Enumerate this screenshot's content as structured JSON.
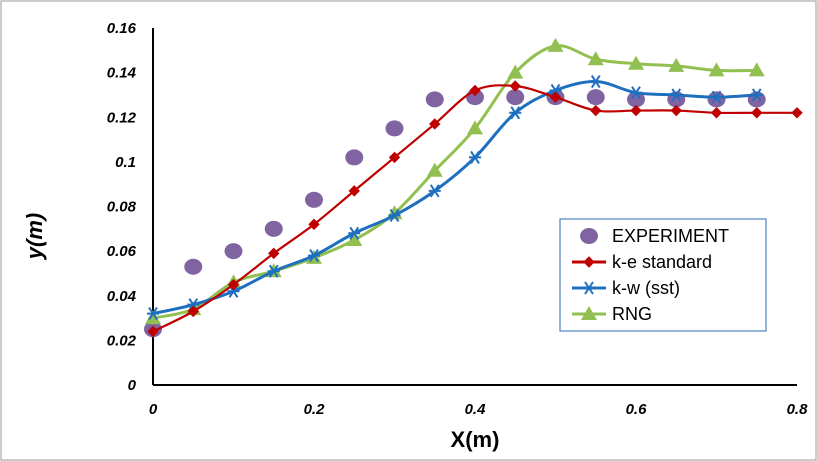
{
  "chart_data": {
    "type": "line",
    "title": "",
    "xlabel": "X(m)",
    "ylabel": "y(m)",
    "xlim": [
      0,
      0.8
    ],
    "ylim": [
      0,
      0.16
    ],
    "x_ticks": [
      "0",
      "0.2",
      "0.4",
      "0.6",
      "0.8"
    ],
    "y_ticks": [
      "0",
      "0.02",
      "0.04",
      "0.06",
      "0.08",
      "0.1",
      "0.12",
      "0.14",
      "0.16"
    ],
    "grid": false,
    "legend_position": "right",
    "series": [
      {
        "name": "EXPERIMENT",
        "style": "scatter",
        "color": "#8064a2",
        "marker": "circle",
        "x": [
          0,
          0.05,
          0.1,
          0.15,
          0.2,
          0.25,
          0.3,
          0.35,
          0.4,
          0.45,
          0.5,
          0.55,
          0.6,
          0.65,
          0.7,
          0.75
        ],
        "y": [
          0.025,
          0.053,
          0.06,
          0.07,
          0.083,
          0.102,
          0.115,
          0.128,
          0.129,
          0.129,
          0.129,
          0.129,
          0.128,
          0.128,
          0.128,
          0.128
        ]
      },
      {
        "name": "k-e standard",
        "style": "line",
        "color": "#c00000",
        "marker": "diamond",
        "x": [
          0,
          0.05,
          0.1,
          0.15,
          0.2,
          0.25,
          0.3,
          0.35,
          0.4,
          0.45,
          0.5,
          0.55,
          0.6,
          0.65,
          0.7,
          0.75,
          0.8
        ],
        "y": [
          0.024,
          0.033,
          0.045,
          0.059,
          0.072,
          0.087,
          0.102,
          0.117,
          0.132,
          0.134,
          0.129,
          0.123,
          0.123,
          0.123,
          0.122,
          0.122,
          0.122
        ]
      },
      {
        "name": "k-w (sst)",
        "style": "line",
        "color": "#1f6fbf",
        "marker": "asterisk",
        "x": [
          0,
          0.05,
          0.1,
          0.15,
          0.2,
          0.25,
          0.3,
          0.35,
          0.4,
          0.45,
          0.5,
          0.55,
          0.6,
          0.65,
          0.7,
          0.75
        ],
        "y": [
          0.032,
          0.036,
          0.042,
          0.051,
          0.058,
          0.068,
          0.076,
          0.087,
          0.102,
          0.122,
          0.132,
          0.136,
          0.131,
          0.13,
          0.129,
          0.13
        ]
      },
      {
        "name": "RNG",
        "style": "line",
        "color": "#92c050",
        "marker": "triangle",
        "x": [
          0,
          0.05,
          0.1,
          0.15,
          0.2,
          0.25,
          0.3,
          0.35,
          0.4,
          0.45,
          0.5,
          0.55,
          0.6,
          0.65,
          0.7,
          0.75
        ],
        "y": [
          0.03,
          0.034,
          0.046,
          0.051,
          0.057,
          0.065,
          0.077,
          0.096,
          0.115,
          0.14,
          0.152,
          0.146,
          0.144,
          0.143,
          0.141,
          0.141
        ]
      }
    ]
  }
}
